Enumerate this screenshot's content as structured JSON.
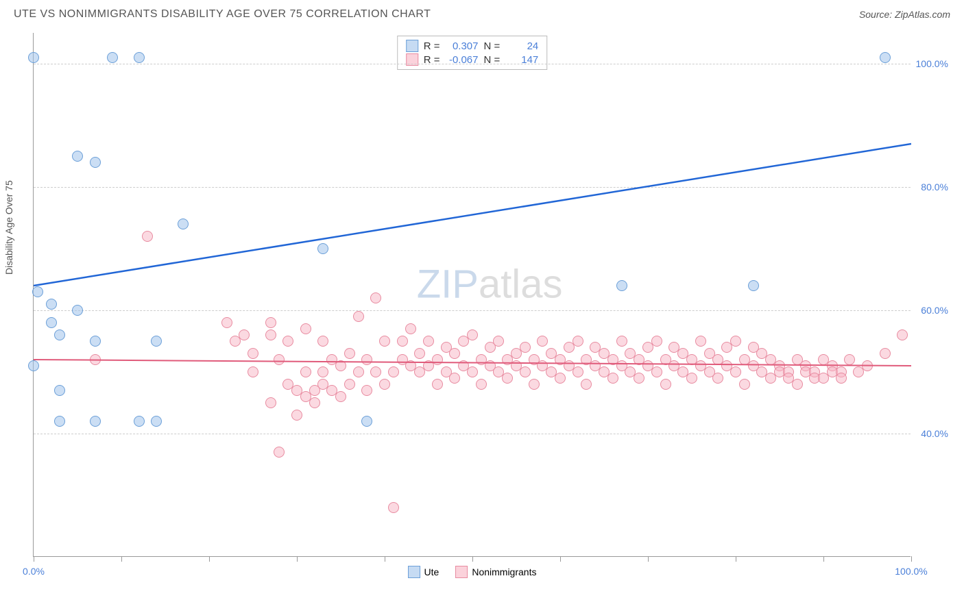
{
  "header": {
    "title": "UTE VS NONIMMIGRANTS DISABILITY AGE OVER 75 CORRELATION CHART",
    "source": "Source: ZipAtlas.com"
  },
  "chart": {
    "type": "scatter",
    "ylabel": "Disability Age Over 75",
    "xlim": [
      0,
      100
    ],
    "ylim": [
      20,
      105
    ],
    "xtick_positions": [
      0,
      10,
      20,
      30,
      40,
      50,
      60,
      70,
      80,
      90,
      100
    ],
    "xtick_labels": {
      "0": "0.0%",
      "100": "100.0%"
    },
    "ytick_positions": [
      40,
      60,
      80,
      100
    ],
    "ytick_labels": [
      "40.0%",
      "60.0%",
      "80.0%",
      "100.0%"
    ],
    "grid_color": "#cccccc",
    "axis_color": "#999999",
    "label_color": "#4a7fd8",
    "series": {
      "blue": {
        "name": "Ute",
        "color_fill": "rgba(160,195,235,0.55)",
        "color_stroke": "#6b9fd8",
        "r_value": "0.307",
        "n_value": "24",
        "trend": {
          "x1": 0,
          "y1": 64,
          "x2": 100,
          "y2": 87,
          "color": "#2166d6",
          "width": 2.5
        },
        "points": [
          [
            0,
            101
          ],
          [
            0,
            51
          ],
          [
            0.5,
            63
          ],
          [
            2,
            58
          ],
          [
            2,
            61
          ],
          [
            3,
            56
          ],
          [
            3,
            42
          ],
          [
            3,
            47
          ],
          [
            5,
            60
          ],
          [
            5,
            85
          ],
          [
            7,
            84
          ],
          [
            7,
            42
          ],
          [
            7,
            55
          ],
          [
            9,
            101
          ],
          [
            12,
            101
          ],
          [
            12,
            42
          ],
          [
            14,
            55
          ],
          [
            14,
            42
          ],
          [
            17,
            74
          ],
          [
            33,
            70
          ],
          [
            38,
            42
          ],
          [
            67,
            64
          ],
          [
            82,
            64
          ],
          [
            97,
            101
          ]
        ]
      },
      "pink": {
        "name": "Nonimmigrants",
        "color_fill": "rgba(248,180,195,0.5)",
        "color_stroke": "#e88ba0",
        "r_value": "-0.067",
        "n_value": "147",
        "trend": {
          "x1": 0,
          "y1": 52,
          "x2": 100,
          "y2": 51,
          "color": "#e05a7a",
          "width": 2
        },
        "points": [
          [
            7,
            52
          ],
          [
            13,
            72
          ],
          [
            22,
            58
          ],
          [
            23,
            55
          ],
          [
            24,
            56
          ],
          [
            25,
            50
          ],
          [
            25,
            53
          ],
          [
            27,
            45
          ],
          [
            27,
            56
          ],
          [
            27,
            58
          ],
          [
            28,
            52
          ],
          [
            28,
            37
          ],
          [
            29,
            55
          ],
          [
            29,
            48
          ],
          [
            30,
            47
          ],
          [
            30,
            43
          ],
          [
            31,
            46
          ],
          [
            31,
            50
          ],
          [
            31,
            57
          ],
          [
            32,
            47
          ],
          [
            32,
            45
          ],
          [
            33,
            50
          ],
          [
            33,
            48
          ],
          [
            33,
            55
          ],
          [
            34,
            52
          ],
          [
            34,
            47
          ],
          [
            35,
            46
          ],
          [
            35,
            51
          ],
          [
            36,
            53
          ],
          [
            36,
            48
          ],
          [
            37,
            50
          ],
          [
            37,
            59
          ],
          [
            38,
            52
          ],
          [
            38,
            47
          ],
          [
            39,
            62
          ],
          [
            39,
            50
          ],
          [
            40,
            48
          ],
          [
            40,
            55
          ],
          [
            41,
            28
          ],
          [
            41,
            50
          ],
          [
            42,
            52
          ],
          [
            42,
            55
          ],
          [
            43,
            51
          ],
          [
            43,
            57
          ],
          [
            44,
            50
          ],
          [
            44,
            53
          ],
          [
            45,
            55
          ],
          [
            45,
            51
          ],
          [
            46,
            48
          ],
          [
            46,
            52
          ],
          [
            47,
            50
          ],
          [
            47,
            54
          ],
          [
            48,
            53
          ],
          [
            48,
            49
          ],
          [
            49,
            55
          ],
          [
            49,
            51
          ],
          [
            50,
            50
          ],
          [
            50,
            56
          ],
          [
            51,
            52
          ],
          [
            51,
            48
          ],
          [
            52,
            51
          ],
          [
            52,
            54
          ],
          [
            53,
            50
          ],
          [
            53,
            55
          ],
          [
            54,
            52
          ],
          [
            54,
            49
          ],
          [
            55,
            53
          ],
          [
            55,
            51
          ],
          [
            56,
            50
          ],
          [
            56,
            54
          ],
          [
            57,
            52
          ],
          [
            57,
            48
          ],
          [
            58,
            51
          ],
          [
            58,
            55
          ],
          [
            59,
            50
          ],
          [
            59,
            53
          ],
          [
            60,
            52
          ],
          [
            60,
            49
          ],
          [
            61,
            54
          ],
          [
            61,
            51
          ],
          [
            62,
            50
          ],
          [
            62,
            55
          ],
          [
            63,
            52
          ],
          [
            63,
            48
          ],
          [
            64,
            51
          ],
          [
            64,
            54
          ],
          [
            65,
            50
          ],
          [
            65,
            53
          ],
          [
            66,
            52
          ],
          [
            66,
            49
          ],
          [
            67,
            51
          ],
          [
            67,
            55
          ],
          [
            68,
            50
          ],
          [
            68,
            53
          ],
          [
            69,
            52
          ],
          [
            69,
            49
          ],
          [
            70,
            54
          ],
          [
            70,
            51
          ],
          [
            71,
            50
          ],
          [
            71,
            55
          ],
          [
            72,
            52
          ],
          [
            72,
            48
          ],
          [
            73,
            51
          ],
          [
            73,
            54
          ],
          [
            74,
            50
          ],
          [
            74,
            53
          ],
          [
            75,
            52
          ],
          [
            75,
            49
          ],
          [
            76,
            51
          ],
          [
            76,
            55
          ],
          [
            77,
            50
          ],
          [
            77,
            53
          ],
          [
            78,
            52
          ],
          [
            78,
            49
          ],
          [
            79,
            54
          ],
          [
            79,
            51
          ],
          [
            80,
            50
          ],
          [
            80,
            55
          ],
          [
            81,
            52
          ],
          [
            81,
            48
          ],
          [
            82,
            51
          ],
          [
            82,
            54
          ],
          [
            83,
            50
          ],
          [
            83,
            53
          ],
          [
            84,
            52
          ],
          [
            84,
            49
          ],
          [
            85,
            51
          ],
          [
            85,
            50
          ],
          [
            86,
            50
          ],
          [
            86,
            49
          ],
          [
            87,
            52
          ],
          [
            87,
            48
          ],
          [
            88,
            51
          ],
          [
            88,
            50
          ],
          [
            89,
            50
          ],
          [
            89,
            49
          ],
          [
            90,
            52
          ],
          [
            90,
            49
          ],
          [
            91,
            51
          ],
          [
            91,
            50
          ],
          [
            92,
            50
          ],
          [
            92,
            49
          ],
          [
            93,
            52
          ],
          [
            94,
            50
          ],
          [
            95,
            51
          ],
          [
            97,
            53
          ],
          [
            99,
            56
          ]
        ]
      }
    },
    "legend_top": {
      "r_label": "R =",
      "n_label": "N ="
    },
    "watermark": {
      "part1": "ZIP",
      "part2": "atlas"
    }
  }
}
